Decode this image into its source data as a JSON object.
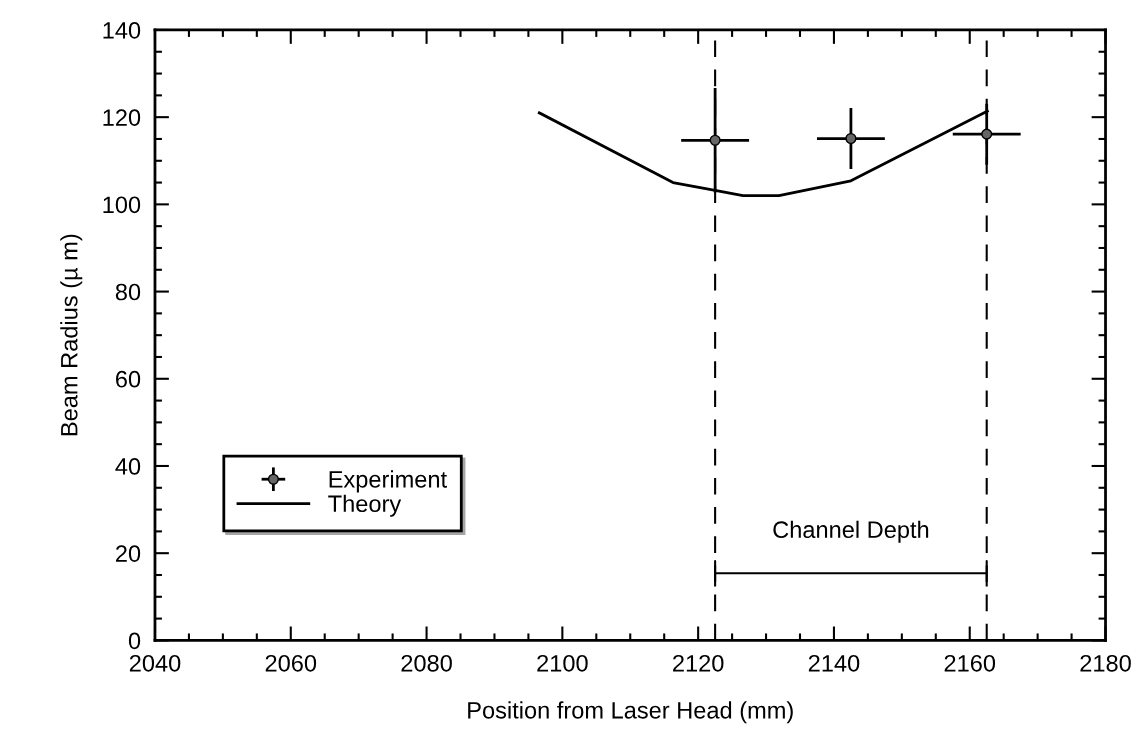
{
  "chart_data": {
    "type": "line",
    "xlabel": "Position from Laser Head (mm)",
    "ylabel": "Beam Radius (µ m)",
    "xlim": [
      2040,
      2180
    ],
    "xticks": [
      2040,
      2060,
      2080,
      2100,
      2120,
      2140,
      2160,
      2180
    ],
    "ylim": [
      0,
      140
    ],
    "yticks": [
      0,
      20,
      40,
      60,
      80,
      100,
      120,
      140
    ],
    "series": [
      {
        "name": "Experiment",
        "type": "scatter",
        "color": "#000000",
        "marker": "circle",
        "x": [
          2122.5,
          2142.5,
          2162.5
        ],
        "values": [
          114.7,
          115.1,
          116.1
        ],
        "errors": [
          12,
          7,
          7
        ],
        "xerrors": [
          5,
          5,
          5
        ]
      },
      {
        "name": "Theory",
        "color": "#000000",
        "line_style": "solid",
        "marker": "none",
        "x": [
          2096.6,
          2116.3,
          2122.5,
          2126.6,
          2131.9,
          2142.5,
          2162.6
        ],
        "values": [
          121,
          105,
          103.2,
          102,
          102,
          105.4,
          121.4
        ]
      }
    ],
    "ref_lines": [
      {
        "axis": "x",
        "value": 2122.5,
        "color": "#000000",
        "line_style": "dashed"
      },
      {
        "axis": "x",
        "value": 2162.5,
        "color": "#000000",
        "line_style": "dashed"
      }
    ],
    "annotations": [
      "Channel Depth"
    ],
    "legend": "bottom left",
    "grid": false
  }
}
